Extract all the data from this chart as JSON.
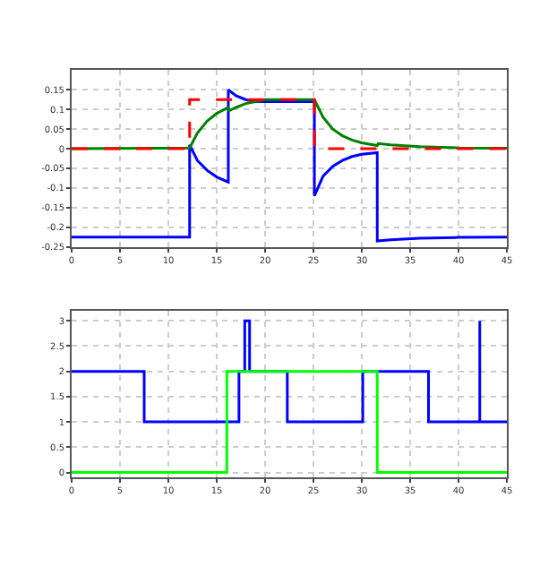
{
  "chart_data": [
    {
      "type": "line",
      "xlim": [
        0,
        45
      ],
      "xticks": [
        0,
        5,
        10,
        15,
        20,
        25,
        30,
        35,
        40,
        45
      ],
      "ylim": [
        -0.25,
        0.2
      ],
      "yticks": [
        -0.25,
        -0.2,
        -0.15,
        -0.1,
        -0.05,
        0,
        0.05,
        0.1,
        0.15
      ],
      "grid": true,
      "series": [
        {
          "color": "#0000ff",
          "x": [
            0,
            12.2,
            12.2,
            13,
            14,
            15,
            16.2,
            16.2,
            17,
            18,
            19,
            20,
            25.1,
            25.1,
            26,
            27,
            28,
            29,
            30,
            31.6,
            31.6,
            33,
            36,
            40,
            45
          ],
          "values": [
            -0.225,
            -0.225,
            0.01,
            -0.03,
            -0.055,
            -0.072,
            -0.085,
            0.15,
            0.135,
            0.125,
            0.12,
            0.12,
            0.12,
            -0.12,
            -0.07,
            -0.045,
            -0.03,
            -0.02,
            -0.014,
            -0.01,
            -0.235,
            -0.232,
            -0.228,
            -0.226,
            -0.225
          ]
        },
        {
          "color": "#008000",
          "x": [
            0,
            12.2,
            13,
            14,
            15,
            16.2,
            16.3,
            17,
            18,
            19,
            20,
            25.1,
            26,
            27,
            28,
            29,
            30,
            31.6,
            31.7,
            33,
            36,
            40,
            45
          ],
          "values": [
            0,
            0.002,
            0.04,
            0.07,
            0.09,
            0.105,
            0.097,
            0.105,
            0.115,
            0.12,
            0.125,
            0.125,
            0.08,
            0.05,
            0.033,
            0.022,
            0.015,
            0.008,
            0.013,
            0.01,
            0.005,
            0.002,
            0.001
          ]
        },
        {
          "color": "#ff0000",
          "line_style": "dashed",
          "x": [
            0,
            12.2,
            12.2,
            25.1,
            25.1,
            45
          ],
          "values": [
            0,
            0,
            0.125,
            0.125,
            0,
            0
          ]
        }
      ]
    },
    {
      "type": "line",
      "xlim": [
        0,
        45
      ],
      "xticks": [
        0,
        5,
        10,
        15,
        20,
        25,
        30,
        35,
        40,
        45
      ],
      "ylim": [
        -0.1,
        3.2
      ],
      "yticks": [
        0,
        0.5,
        1,
        1.5,
        2,
        2.5,
        3
      ],
      "grid": true,
      "series": [
        {
          "color": "#0000ff",
          "x": [
            0,
            7.5,
            7.5,
            17.3,
            17.3,
            17.9,
            17.9,
            18.4,
            18.4,
            22.3,
            22.3,
            30.1,
            30.1,
            36.9,
            36.9,
            42.2,
            42.2,
            42.2,
            45
          ],
          "values": [
            2,
            2,
            1,
            1,
            2,
            2,
            3,
            3,
            2,
            2,
            1,
            1,
            2,
            2,
            1,
            1,
            3,
            1,
            1
          ]
        },
        {
          "color": "#00ff00",
          "x": [
            0,
            16.05,
            16.05,
            31.6,
            31.6,
            45
          ],
          "values": [
            0,
            0,
            2,
            2,
            0,
            0
          ]
        }
      ]
    }
  ]
}
